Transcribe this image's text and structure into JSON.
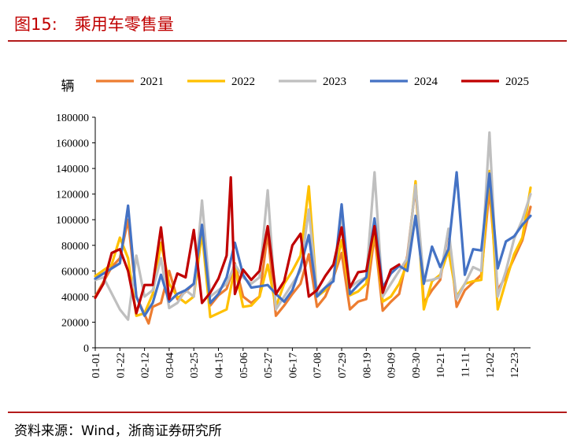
{
  "figure": {
    "number": "图15:",
    "title": "乘用车零售量",
    "source": "资料来源：Wind，浙商证券研究所"
  },
  "colors": {
    "2021": "#ed7d31",
    "2022": "#ffc000",
    "2023": "#bfbfbf",
    "2024": "#4472c4",
    "2025": "#c00000",
    "rule": "#b31b1b"
  },
  "chart_data": {
    "type": "line",
    "title": "乘用车零售量",
    "ylabel": "辆",
    "xlabel": "",
    "ylim": [
      0,
      180000
    ],
    "yticks": [
      0,
      20000,
      40000,
      60000,
      80000,
      100000,
      120000,
      140000,
      160000,
      180000
    ],
    "legend_position": "top",
    "grid": false,
    "x_tick_labels": [
      "01-01",
      "01-22",
      "02-12",
      "03-04",
      "03-25",
      "04-15",
      "05-06",
      "05-27",
      "06-17",
      "07-08",
      "07-29",
      "08-19",
      "09-09",
      "09-30",
      "10-21",
      "11-11",
      "12-02",
      "12-23"
    ],
    "x_tick_weeks": [
      0,
      3,
      6,
      9,
      12,
      15,
      18,
      21,
      24,
      27,
      30,
      33,
      36,
      39,
      42,
      45,
      48,
      51
    ],
    "x_unit": "week index (0 = 01-01)",
    "series": [
      {
        "name": "2021",
        "points": [
          [
            0,
            40000
          ],
          [
            2,
            63000
          ],
          [
            3,
            70000
          ],
          [
            4,
            100000
          ],
          [
            5,
            40000
          ],
          [
            6,
            26000
          ],
          [
            6.5,
            19000
          ],
          [
            7,
            32000
          ],
          [
            8,
            35000
          ],
          [
            9,
            60000
          ],
          [
            10,
            38000
          ],
          [
            11,
            44000
          ],
          [
            12,
            50000
          ],
          [
            13,
            92000
          ],
          [
            14,
            33000
          ],
          [
            15,
            41000
          ],
          [
            16,
            46000
          ],
          [
            17,
            66000
          ],
          [
            18,
            40000
          ],
          [
            19,
            35000
          ],
          [
            20,
            40000
          ],
          [
            21,
            90000
          ],
          [
            22,
            25000
          ],
          [
            23,
            33000
          ],
          [
            24,
            42000
          ],
          [
            25,
            50000
          ],
          [
            26,
            73000
          ],
          [
            27,
            32000
          ],
          [
            28,
            40000
          ],
          [
            29,
            55000
          ],
          [
            30,
            74000
          ],
          [
            31,
            30000
          ],
          [
            32,
            36000
          ],
          [
            33,
            38000
          ],
          [
            34,
            88000
          ],
          [
            35,
            29000
          ],
          [
            36,
            36000
          ],
          [
            37,
            42000
          ],
          [
            38,
            72000
          ],
          [
            39,
            126000
          ],
          [
            40,
            35000
          ],
          [
            41,
            45000
          ],
          [
            42,
            53000
          ],
          [
            43,
            92000
          ],
          [
            44,
            32000
          ],
          [
            45,
            45000
          ],
          [
            46,
            51000
          ],
          [
            47,
            57000
          ],
          [
            48,
            124000
          ],
          [
            49,
            45000
          ],
          [
            50,
            56000
          ],
          [
            51,
            70000
          ],
          [
            52,
            84000
          ],
          [
            53,
            110000
          ]
        ]
      },
      {
        "name": "2022",
        "points": [
          [
            0,
            56000
          ],
          [
            2,
            65000
          ],
          [
            3,
            86000
          ],
          [
            4,
            70000
          ],
          [
            5,
            25000
          ],
          [
            6,
            27000
          ],
          [
            7,
            42000
          ],
          [
            8,
            82000
          ],
          [
            9,
            50000
          ],
          [
            10,
            40000
          ],
          [
            11,
            35000
          ],
          [
            12,
            40000
          ],
          [
            13,
            90000
          ],
          [
            14,
            24000
          ],
          [
            15,
            27000
          ],
          [
            16,
            30000
          ],
          [
            17,
            63000
          ],
          [
            18,
            32000
          ],
          [
            19,
            33000
          ],
          [
            20,
            40000
          ],
          [
            21,
            65000
          ],
          [
            22,
            32000
          ],
          [
            23,
            50000
          ],
          [
            24,
            60000
          ],
          [
            25,
            72000
          ],
          [
            26,
            126000
          ],
          [
            27,
            40000
          ],
          [
            28,
            45000
          ],
          [
            29,
            55000
          ],
          [
            30,
            84000
          ],
          [
            31,
            41000
          ],
          [
            32,
            44000
          ],
          [
            33,
            50000
          ],
          [
            34,
            93000
          ],
          [
            35,
            36000
          ],
          [
            36,
            40000
          ],
          [
            37,
            50000
          ],
          [
            38,
            66000
          ],
          [
            39,
            130000
          ],
          [
            40,
            30000
          ],
          [
            41,
            52000
          ],
          [
            42,
            57000
          ],
          [
            43,
            76000
          ],
          [
            44,
            40000
          ],
          [
            45,
            50000
          ],
          [
            46,
            52000
          ],
          [
            47,
            53000
          ],
          [
            48,
            138000
          ],
          [
            49,
            30000
          ],
          [
            50,
            52000
          ],
          [
            51,
            73000
          ],
          [
            52,
            86000
          ],
          [
            53,
            125000
          ]
        ]
      },
      {
        "name": "2023",
        "points": [
          [
            0,
            53000
          ],
          [
            1,
            55000
          ],
          [
            3,
            30000
          ],
          [
            4,
            22000
          ],
          [
            5,
            72000
          ],
          [
            6,
            40000
          ],
          [
            7,
            45000
          ],
          [
            8,
            70000
          ],
          [
            9,
            31000
          ],
          [
            10,
            35000
          ],
          [
            11,
            45000
          ],
          [
            12,
            40000
          ],
          [
            13,
            115000
          ],
          [
            14,
            40000
          ],
          [
            15,
            45000
          ],
          [
            16,
            50000
          ],
          [
            17,
            65000
          ],
          [
            18,
            55000
          ],
          [
            19,
            50000
          ],
          [
            20,
            55000
          ],
          [
            21,
            123000
          ],
          [
            22,
            30000
          ],
          [
            23,
            40000
          ],
          [
            24,
            50000
          ],
          [
            25,
            60000
          ],
          [
            26,
            108000
          ],
          [
            27,
            42000
          ],
          [
            28,
            47000
          ],
          [
            29,
            55000
          ],
          [
            30,
            105000
          ],
          [
            31,
            47000
          ],
          [
            32,
            52000
          ],
          [
            33,
            55000
          ],
          [
            34,
            137000
          ],
          [
            35,
            40000
          ],
          [
            36,
            50000
          ],
          [
            37,
            60000
          ],
          [
            38,
            70000
          ],
          [
            39,
            127000
          ],
          [
            40,
            52000
          ],
          [
            41,
            53000
          ],
          [
            42,
            55000
          ],
          [
            43,
            93000
          ],
          [
            44,
            38000
          ],
          [
            45,
            50000
          ],
          [
            46,
            63000
          ],
          [
            47,
            60000
          ],
          [
            48,
            168000
          ],
          [
            49,
            40000
          ],
          [
            50,
            60000
          ],
          [
            51,
            85000
          ],
          [
            52,
            100000
          ],
          [
            53,
            120000
          ]
        ]
      },
      {
        "name": "2024",
        "points": [
          [
            0,
            54000
          ],
          [
            2,
            62000
          ],
          [
            3,
            66000
          ],
          [
            4,
            111000
          ],
          [
            5,
            40000
          ],
          [
            6,
            25000
          ],
          [
            7,
            35000
          ],
          [
            8,
            57000
          ],
          [
            9,
            36000
          ],
          [
            10,
            42000
          ],
          [
            11,
            45000
          ],
          [
            12,
            50000
          ],
          [
            13,
            96000
          ],
          [
            14,
            35000
          ],
          [
            15,
            42000
          ],
          [
            16,
            55000
          ],
          [
            17,
            82000
          ],
          [
            18,
            57000
          ],
          [
            19,
            47000
          ],
          [
            20,
            48000
          ],
          [
            21,
            49000
          ],
          [
            22,
            42000
          ],
          [
            23,
            36000
          ],
          [
            24,
            45000
          ],
          [
            25,
            63000
          ],
          [
            26,
            88000
          ],
          [
            27,
            40000
          ],
          [
            28,
            47000
          ],
          [
            29,
            52000
          ],
          [
            30,
            112000
          ],
          [
            31,
            42000
          ],
          [
            32,
            49000
          ],
          [
            33,
            55000
          ],
          [
            34,
            101000
          ],
          [
            35,
            47000
          ],
          [
            36,
            58000
          ],
          [
            37,
            64000
          ],
          [
            38,
            60000
          ],
          [
            39,
            103000
          ],
          [
            40,
            50000
          ],
          [
            41,
            79000
          ],
          [
            42,
            63000
          ],
          [
            43,
            77000
          ],
          [
            44,
            137000
          ],
          [
            45,
            57000
          ],
          [
            46,
            77000
          ],
          [
            47,
            76000
          ],
          [
            48,
            136000
          ],
          [
            49,
            62000
          ],
          [
            50,
            83000
          ],
          [
            51,
            87000
          ],
          [
            52,
            96000
          ],
          [
            53,
            103000
          ]
        ]
      },
      {
        "name": "2025",
        "points": [
          [
            0,
            39000
          ],
          [
            1,
            50000
          ],
          [
            2,
            74000
          ],
          [
            3,
            77000
          ],
          [
            4,
            60000
          ],
          [
            5,
            27000
          ],
          [
            6,
            49000
          ],
          [
            7,
            49000
          ],
          [
            8,
            94000
          ],
          [
            9,
            38000
          ],
          [
            10,
            58000
          ],
          [
            11,
            55000
          ],
          [
            12,
            92000
          ],
          [
            13,
            35000
          ],
          [
            14,
            43000
          ],
          [
            15,
            54000
          ],
          [
            16,
            72000
          ],
          [
            16.5,
            133000
          ],
          [
            17,
            42000
          ],
          [
            18,
            61000
          ],
          [
            19,
            53000
          ],
          [
            20,
            60000
          ],
          [
            21,
            95000
          ],
          [
            22,
            42000
          ],
          [
            23,
            52000
          ],
          [
            24,
            80000
          ],
          [
            25,
            89000
          ],
          [
            26,
            40000
          ],
          [
            27,
            45000
          ],
          [
            28,
            56000
          ],
          [
            29,
            65000
          ],
          [
            30,
            94000
          ],
          [
            31,
            47000
          ],
          [
            32,
            59000
          ],
          [
            33,
            60000
          ],
          [
            34,
            95000
          ],
          [
            35,
            43000
          ],
          [
            36,
            61000
          ],
          [
            37,
            65000
          ]
        ]
      }
    ]
  }
}
